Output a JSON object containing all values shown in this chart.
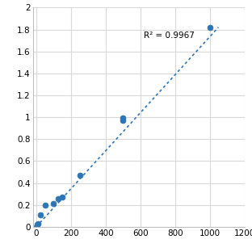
{
  "x": [
    0,
    6,
    12,
    25,
    50,
    100,
    125,
    150,
    250,
    500,
    500,
    1000
  ],
  "y": [
    0.0,
    0.02,
    0.03,
    0.11,
    0.2,
    0.21,
    0.26,
    0.27,
    0.47,
    0.97,
    0.99,
    1.82
  ],
  "trendline_x": [
    0,
    1050
  ],
  "trendline_y": [
    0.0,
    1.82
  ],
  "r_squared": "R² = 0.9967",
  "r_squared_x": 620,
  "r_squared_y": 1.72,
  "xlim": [
    -20,
    1200
  ],
  "ylim": [
    0,
    2.0
  ],
  "xticks": [
    0,
    200,
    400,
    600,
    800,
    1000,
    1200
  ],
  "yticks": [
    0,
    0.2,
    0.4,
    0.6,
    0.8,
    1.0,
    1.2,
    1.4,
    1.6,
    1.8,
    2
  ],
  "ytick_labels": [
    "0",
    "0.2",
    "0.4",
    "0.6",
    "0.8",
    "1",
    "1.2",
    "1.4",
    "1.6",
    "1.8",
    "2"
  ],
  "dot_color": "#2E75B6",
  "line_color": "#2E75B6",
  "background_color": "#ffffff",
  "grid_color": "#D9D9D9",
  "marker_size": 5,
  "font_size": 7.5,
  "annotation_font_size": 7.5
}
